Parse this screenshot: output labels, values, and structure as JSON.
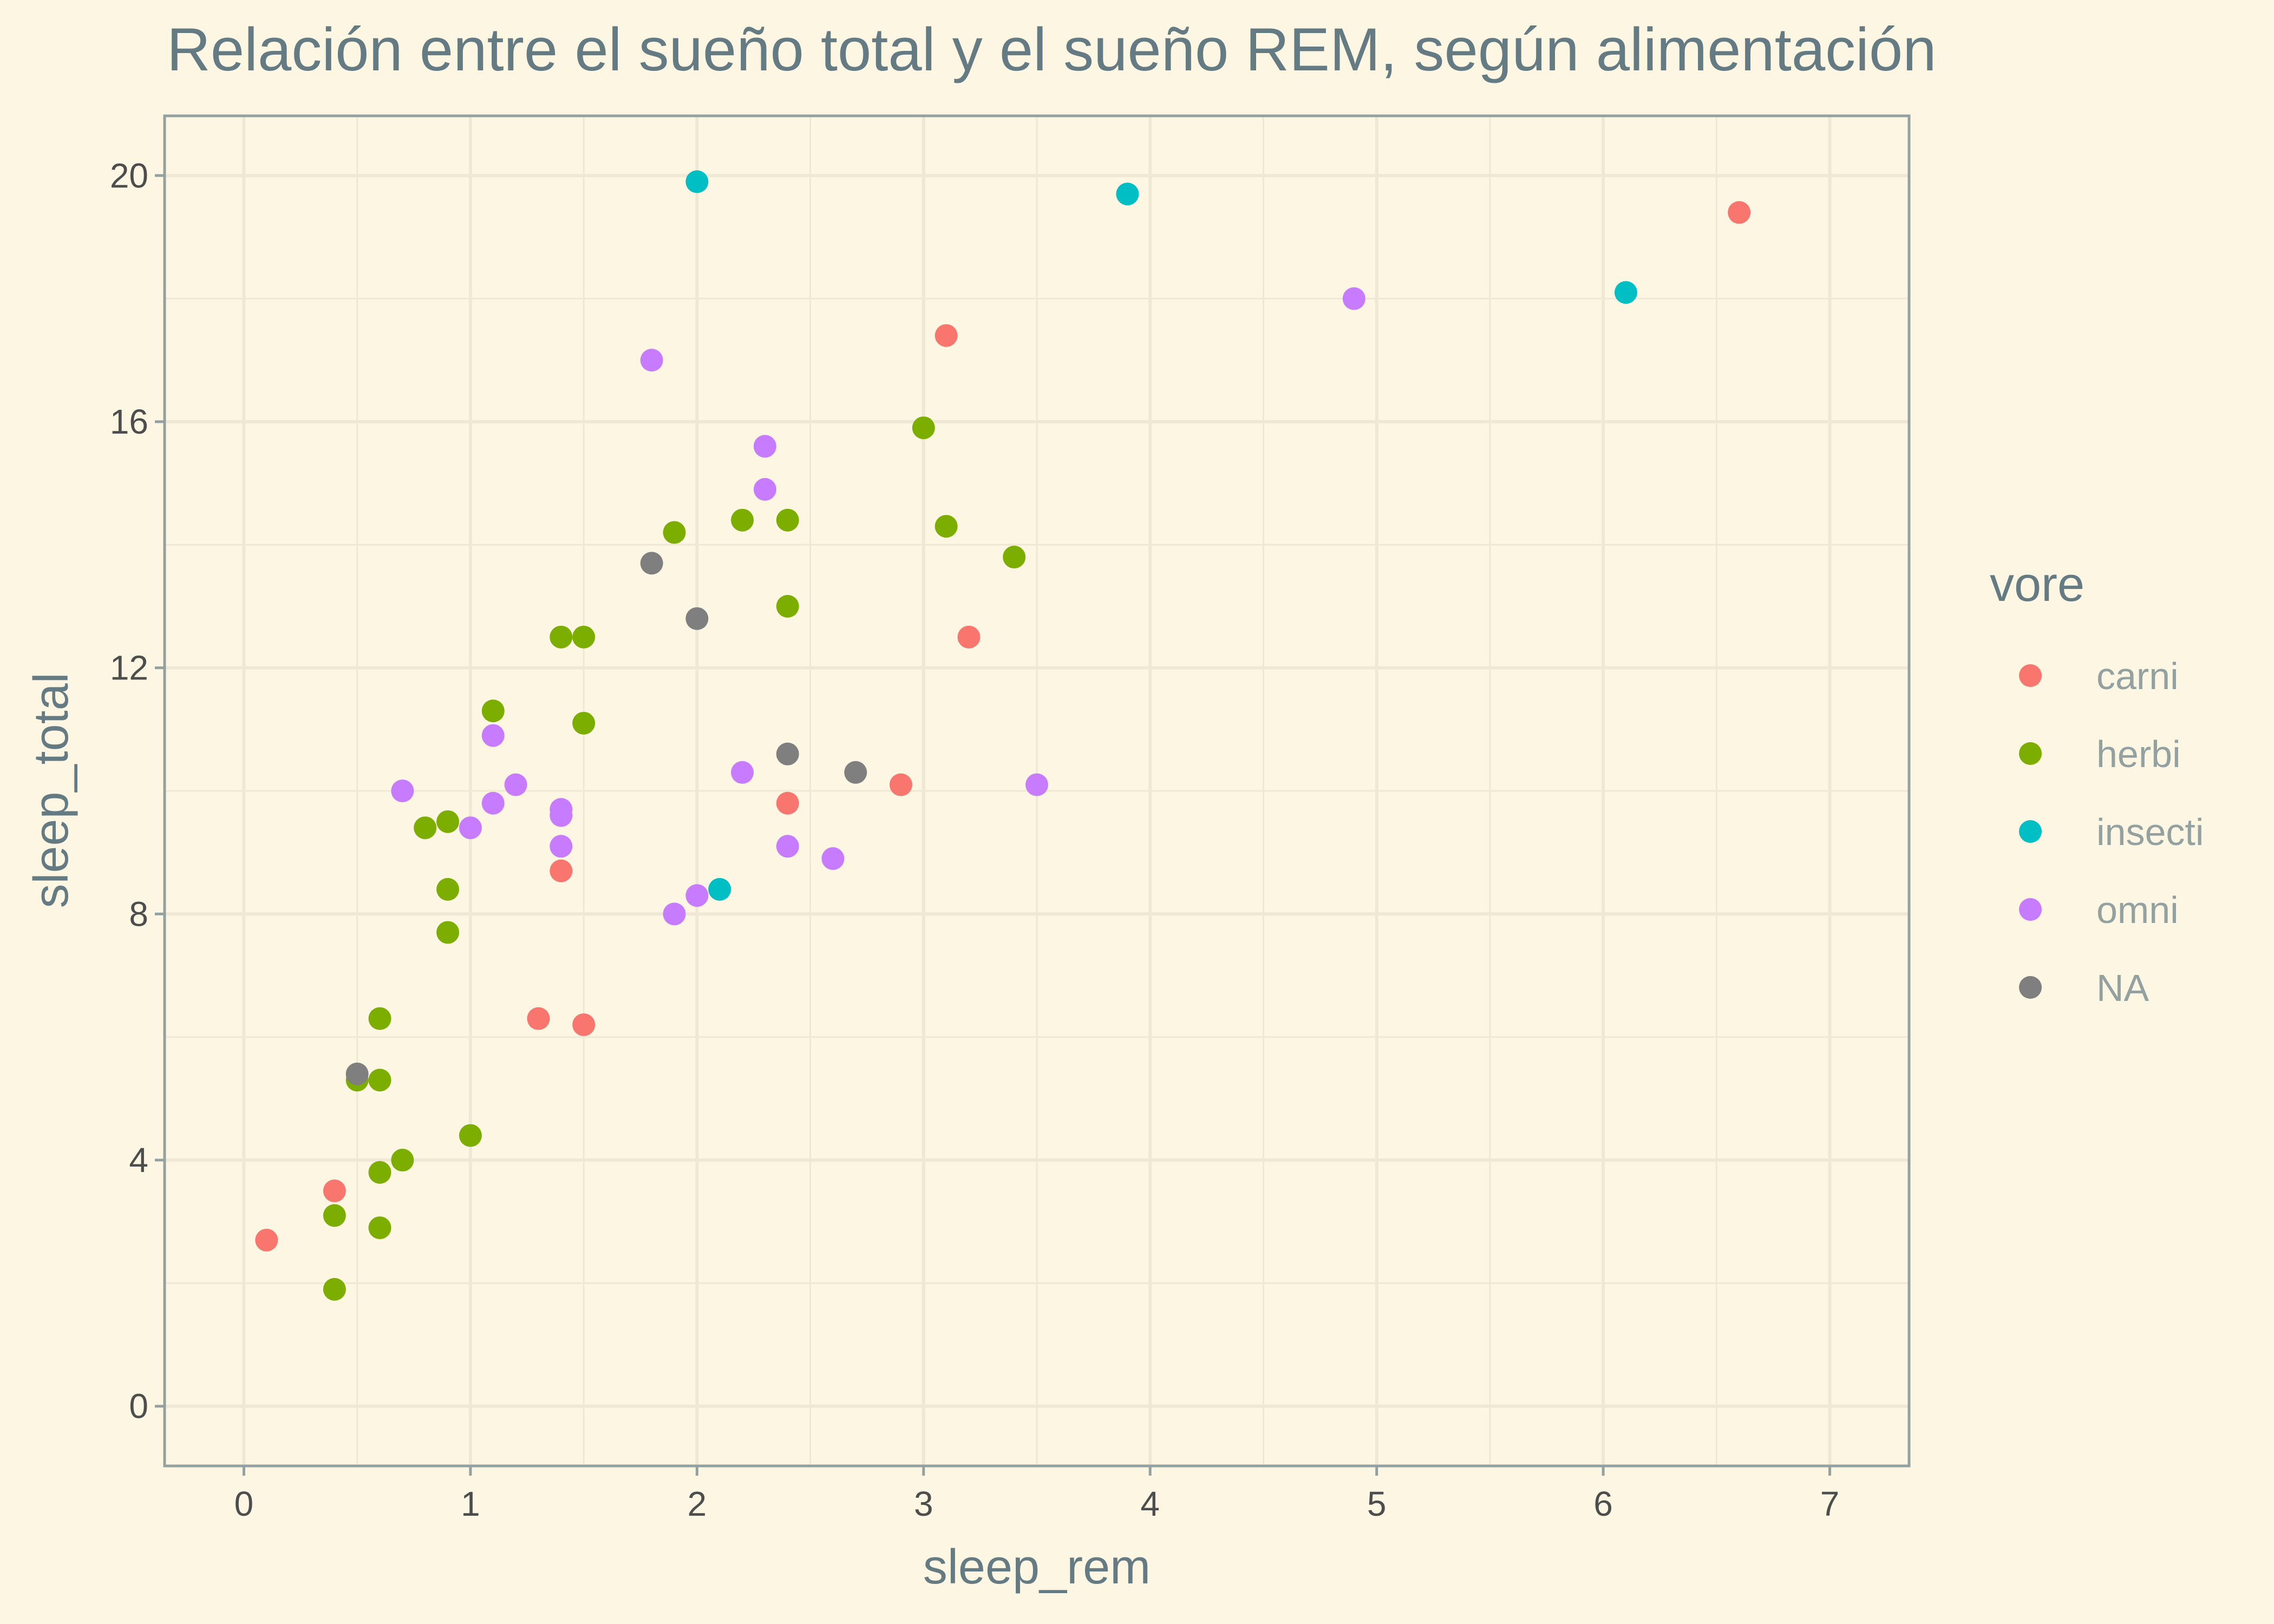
{
  "chart_data": {
    "type": "scatter",
    "title": "Relación entre el sueño total y el sueño REM, según alimentación",
    "xlabel": "sleep_rem",
    "ylabel": "sleep_total",
    "xlim": [
      -0.35,
      7.35
    ],
    "ylim": [
      -0.97,
      20.97
    ],
    "x_ticks": [
      0,
      1,
      2,
      3,
      4,
      5,
      6,
      7
    ],
    "y_ticks": [
      0,
      4,
      8,
      12,
      16,
      20
    ],
    "x_tick_labels": [
      "0",
      "1",
      "2",
      "3",
      "4",
      "5",
      "6",
      "7"
    ],
    "y_tick_labels": [
      "0",
      "4",
      "8",
      "12",
      "16",
      "20"
    ],
    "grid": true,
    "legend": {
      "title": "vore",
      "position": "right"
    },
    "series": [
      {
        "name": "carni",
        "color": "#f8766d",
        "points": [
          [
            0.1,
            2.7
          ],
          [
            0.4,
            3.5
          ],
          [
            1.3,
            6.3
          ],
          [
            1.4,
            8.7
          ],
          [
            1.5,
            6.2
          ],
          [
            2.4,
            9.8
          ],
          [
            2.9,
            10.1
          ],
          [
            3.1,
            17.4
          ],
          [
            3.2,
            12.5
          ],
          [
            6.6,
            19.4
          ]
        ]
      },
      {
        "name": "herbi",
        "color": "#7cae00",
        "points": [
          [
            0.4,
            1.9
          ],
          [
            0.4,
            3.1
          ],
          [
            0.5,
            5.3
          ],
          [
            0.6,
            2.9
          ],
          [
            0.6,
            3.8
          ],
          [
            0.6,
            5.3
          ],
          [
            0.6,
            6.3
          ],
          [
            0.7,
            4.0
          ],
          [
            0.8,
            9.4
          ],
          [
            0.9,
            7.7
          ],
          [
            0.9,
            8.4
          ],
          [
            0.9,
            9.5
          ],
          [
            1.0,
            4.4
          ],
          [
            1.1,
            11.3
          ],
          [
            1.4,
            12.5
          ],
          [
            1.5,
            12.5
          ],
          [
            1.5,
            11.1
          ],
          [
            1.9,
            14.2
          ],
          [
            2.2,
            14.4
          ],
          [
            2.4,
            14.4
          ],
          [
            2.4,
            13.0
          ],
          [
            3.0,
            15.9
          ],
          [
            3.1,
            14.3
          ],
          [
            3.4,
            13.8
          ]
        ]
      },
      {
        "name": "insecti",
        "color": "#00bfc4",
        "points": [
          [
            2.0,
            19.9
          ],
          [
            2.1,
            8.4
          ],
          [
            3.9,
            19.7
          ],
          [
            6.1,
            18.1
          ]
        ]
      },
      {
        "name": "omni",
        "color": "#c77cff",
        "points": [
          [
            0.7,
            10.0
          ],
          [
            1.0,
            9.4
          ],
          [
            1.1,
            10.9
          ],
          [
            1.1,
            9.8
          ],
          [
            1.2,
            10.1
          ],
          [
            1.4,
            9.7
          ],
          [
            1.4,
            9.6
          ],
          [
            1.4,
            9.1
          ],
          [
            1.8,
            17.0
          ],
          [
            1.9,
            8.0
          ],
          [
            2.0,
            8.3
          ],
          [
            2.2,
            10.3
          ],
          [
            2.3,
            15.6
          ],
          [
            2.3,
            14.9
          ],
          [
            2.4,
            9.1
          ],
          [
            2.6,
            8.9
          ],
          [
            3.5,
            10.1
          ],
          [
            4.9,
            18.0
          ]
        ]
      },
      {
        "name": "NA",
        "color": "#7f7f7f",
        "points": [
          [
            0.5,
            5.4
          ],
          [
            1.8,
            13.7
          ],
          [
            2.0,
            12.8
          ],
          [
            2.4,
            10.6
          ],
          [
            2.7,
            10.3
          ]
        ]
      }
    ]
  }
}
